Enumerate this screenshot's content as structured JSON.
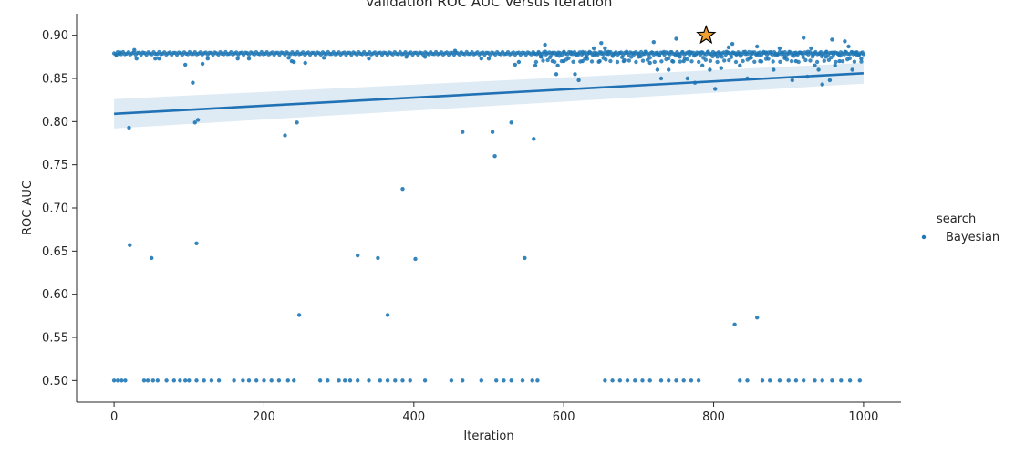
{
  "chart_data": {
    "type": "scatter",
    "title": "Validation ROC AUC Versus Iteration",
    "xlabel": "Iteration",
    "ylabel": "ROC AUC",
    "xlim": [
      -50,
      1050
    ],
    "ylim": [
      0.475,
      0.925
    ],
    "xticks": [
      0,
      200,
      400,
      600,
      800,
      1000
    ],
    "yticks": [
      0.5,
      0.55,
      0.6,
      0.65,
      0.7,
      0.75,
      0.8,
      0.85,
      0.9
    ],
    "grid": false,
    "legend": {
      "title": "search",
      "position": "right",
      "entries": [
        "Bayesian"
      ]
    },
    "point_color": "#1f77b4",
    "series": [
      {
        "name": "Bayesian",
        "points": [
          [
            3,
            0.877
          ],
          [
            8,
            0.88
          ],
          [
            20,
            0.793
          ],
          [
            21,
            0.657
          ],
          [
            27,
            0.883
          ],
          [
            30,
            0.873
          ],
          [
            50,
            0.642
          ],
          [
            55,
            0.873
          ],
          [
            60,
            0.873
          ],
          [
            95,
            0.866
          ],
          [
            105,
            0.845
          ],
          [
            108,
            0.799
          ],
          [
            110,
            0.659
          ],
          [
            112,
            0.802
          ],
          [
            118,
            0.867
          ],
          [
            125,
            0.873
          ],
          [
            165,
            0.873
          ],
          [
            180,
            0.873
          ],
          [
            228,
            0.784
          ],
          [
            233,
            0.874
          ],
          [
            237,
            0.87
          ],
          [
            240,
            0.869
          ],
          [
            244,
            0.799
          ],
          [
            247,
            0.576
          ],
          [
            255,
            0.868
          ],
          [
            280,
            0.874
          ],
          [
            325,
            0.645
          ],
          [
            340,
            0.873
          ],
          [
            352,
            0.642
          ],
          [
            365,
            0.576
          ],
          [
            385,
            0.722
          ],
          [
            390,
            0.875
          ],
          [
            402,
            0.641
          ],
          [
            415,
            0.875
          ],
          [
            455,
            0.882
          ],
          [
            465,
            0.788
          ],
          [
            490,
            0.873
          ],
          [
            500,
            0.873
          ],
          [
            505,
            0.788
          ],
          [
            508,
            0.76
          ],
          [
            530,
            0.799
          ],
          [
            535,
            0.866
          ],
          [
            540,
            0.869
          ],
          [
            548,
            0.642
          ],
          [
            560,
            0.78
          ],
          [
            562,
            0.865
          ],
          [
            570,
            0.875
          ],
          [
            575,
            0.889
          ],
          [
            585,
            0.87
          ],
          [
            590,
            0.855
          ],
          [
            592,
            0.865
          ],
          [
            600,
            0.87
          ],
          [
            610,
            0.88
          ],
          [
            615,
            0.855
          ],
          [
            620,
            0.848
          ],
          [
            625,
            0.87
          ],
          [
            630,
            0.875
          ],
          [
            640,
            0.885
          ],
          [
            648,
            0.87
          ],
          [
            650,
            0.891
          ],
          [
            655,
            0.885
          ],
          [
            660,
            0.88
          ],
          [
            680,
            0.87
          ],
          [
            700,
            0.875
          ],
          [
            715,
            0.868
          ],
          [
            720,
            0.892
          ],
          [
            725,
            0.86
          ],
          [
            730,
            0.85
          ],
          [
            740,
            0.86
          ],
          [
            745,
            0.87
          ],
          [
            750,
            0.896
          ],
          [
            755,
            0.875
          ],
          [
            760,
            0.87
          ],
          [
            765,
            0.85
          ],
          [
            770,
            0.88
          ],
          [
            775,
            0.845
          ],
          [
            785,
            0.865
          ],
          [
            795,
            0.86
          ],
          [
            802,
            0.838
          ],
          [
            805,
            0.875
          ],
          [
            810,
            0.862
          ],
          [
            820,
            0.886
          ],
          [
            825,
            0.89
          ],
          [
            830,
            0.878
          ],
          [
            835,
            0.865
          ],
          [
            845,
            0.85
          ],
          [
            850,
            0.874
          ],
          [
            858,
            0.887
          ],
          [
            862,
            0.87
          ],
          [
            870,
            0.88
          ],
          [
            880,
            0.86
          ],
          [
            888,
            0.885
          ],
          [
            895,
            0.875
          ],
          [
            905,
            0.848
          ],
          [
            910,
            0.87
          ],
          [
            915,
            0.88
          ],
          [
            920,
            0.897
          ],
          [
            925,
            0.852
          ],
          [
            930,
            0.885
          ],
          [
            935,
            0.865
          ],
          [
            940,
            0.86
          ],
          [
            945,
            0.843
          ],
          [
            950,
            0.875
          ],
          [
            955,
            0.848
          ],
          [
            958,
            0.895
          ],
          [
            962,
            0.865
          ],
          [
            968,
            0.87
          ],
          [
            975,
            0.893
          ],
          [
            980,
            0.887
          ],
          [
            985,
            0.86
          ],
          [
            990,
            0.88
          ],
          [
            997,
            0.873
          ],
          [
            1000,
            0.878
          ],
          [
            828,
            0.565
          ],
          [
            858,
            0.573
          ],
          [
            0,
            0.5
          ],
          [
            5,
            0.5
          ],
          [
            10,
            0.5
          ],
          [
            15,
            0.5
          ],
          [
            40,
            0.5
          ],
          [
            45,
            0.5
          ],
          [
            52,
            0.5
          ],
          [
            58,
            0.5
          ],
          [
            70,
            0.5
          ],
          [
            80,
            0.5
          ],
          [
            88,
            0.5
          ],
          [
            95,
            0.5
          ],
          [
            100,
            0.5
          ],
          [
            110,
            0.5
          ],
          [
            120,
            0.5
          ],
          [
            130,
            0.5
          ],
          [
            140,
            0.5
          ],
          [
            160,
            0.5
          ],
          [
            172,
            0.5
          ],
          [
            180,
            0.5
          ],
          [
            190,
            0.5
          ],
          [
            200,
            0.5
          ],
          [
            210,
            0.5
          ],
          [
            220,
            0.5
          ],
          [
            232,
            0.5
          ],
          [
            240,
            0.5
          ],
          [
            275,
            0.5
          ],
          [
            285,
            0.5
          ],
          [
            300,
            0.5
          ],
          [
            308,
            0.5
          ],
          [
            315,
            0.5
          ],
          [
            325,
            0.5
          ],
          [
            340,
            0.5
          ],
          [
            355,
            0.5
          ],
          [
            365,
            0.5
          ],
          [
            375,
            0.5
          ],
          [
            385,
            0.5
          ],
          [
            395,
            0.5
          ],
          [
            415,
            0.5
          ],
          [
            450,
            0.5
          ],
          [
            465,
            0.5
          ],
          [
            490,
            0.5
          ],
          [
            510,
            0.5
          ],
          [
            520,
            0.5
          ],
          [
            530,
            0.5
          ],
          [
            545,
            0.5
          ],
          [
            558,
            0.5
          ],
          [
            565,
            0.5
          ],
          [
            655,
            0.5
          ],
          [
            665,
            0.5
          ],
          [
            675,
            0.5
          ],
          [
            685,
            0.5
          ],
          [
            695,
            0.5
          ],
          [
            705,
            0.5
          ],
          [
            715,
            0.5
          ],
          [
            730,
            0.5
          ],
          [
            740,
            0.5
          ],
          [
            750,
            0.5
          ],
          [
            760,
            0.5
          ],
          [
            770,
            0.5
          ],
          [
            780,
            0.5
          ],
          [
            835,
            0.5
          ],
          [
            845,
            0.5
          ],
          [
            865,
            0.5
          ],
          [
            875,
            0.5
          ],
          [
            888,
            0.5
          ],
          [
            900,
            0.5
          ],
          [
            910,
            0.5
          ],
          [
            920,
            0.5
          ],
          [
            935,
            0.5
          ],
          [
            945,
            0.5
          ],
          [
            958,
            0.5
          ],
          [
            970,
            0.5
          ],
          [
            982,
            0.5
          ],
          [
            995,
            0.5
          ]
        ]
      }
    ],
    "regression": {
      "x": [
        0,
        1000
      ],
      "y": [
        0.809,
        0.856
      ],
      "ci_halfwidth_ends": [
        0.017,
        0.012
      ],
      "color": "#2172b4"
    },
    "best_point": {
      "x": 790,
      "y": 0.9,
      "marker": "star",
      "color": "#f0a030"
    }
  }
}
